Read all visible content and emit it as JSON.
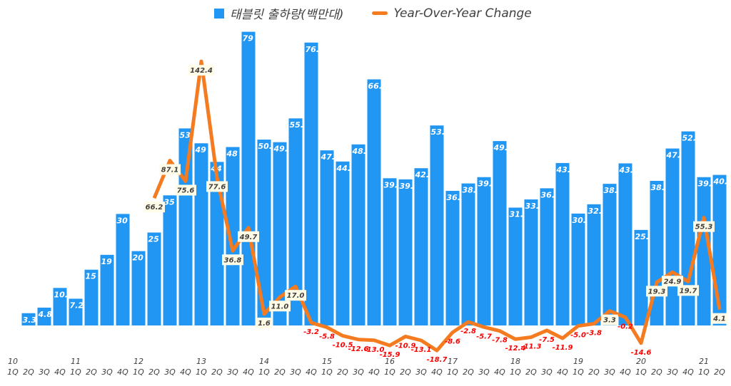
{
  "chart_data": {
    "type": "bar+line",
    "legend_position": "top",
    "grid": false,
    "colors": {
      "bars": "#2196F3",
      "line": "#F47B20",
      "negative_label": "#FF0000",
      "positive_label": "#404040"
    },
    "years": [
      "10",
      "11",
      "12",
      "13",
      "14",
      "15",
      "16",
      "17",
      "18",
      "19",
      "20",
      "21"
    ],
    "categories": [
      "1Q",
      "2Q",
      "3Q",
      "4Q",
      "1Q",
      "2Q",
      "3Q",
      "4Q",
      "1Q",
      "2Q",
      "3Q",
      "4Q",
      "1Q",
      "2Q",
      "3Q",
      "4Q",
      "1Q",
      "2Q",
      "3Q",
      "4Q",
      "1Q",
      "2Q",
      "3Q",
      "4Q",
      "1Q",
      "2Q",
      "3Q",
      "4Q",
      "1Q",
      "2Q",
      "3Q",
      "4Q",
      "1Q",
      "2Q",
      "3Q",
      "4Q",
      "1Q",
      "2Q",
      "3Q",
      "4Q",
      "1Q",
      "2Q",
      "3Q",
      "4Q",
      "1Q",
      "2Q"
    ],
    "series": [
      {
        "name": "태블릿 출하량(백만대)",
        "type": "bar",
        "values": [
          null,
          3.3,
          4.8,
          10.1,
          7.2,
          15,
          19,
          30,
          20,
          25,
          35,
          53,
          49,
          44,
          48,
          79,
          50.0,
          49.3,
          55.7,
          76.1,
          47.1,
          44.1,
          48.7,
          66.2,
          39.6,
          39.3,
          42.3,
          53.8,
          36.2,
          38.2,
          39.9,
          49.6,
          31.7,
          33.9,
          36.9,
          43.7,
          30.1,
          32.6,
          38.1,
          43.6,
          25.7,
          38.9,
          47.6,
          52.2,
          39.9,
          40.5
        ],
        "labels": [
          null,
          "3.3",
          "4.8",
          "10.1",
          "7.2",
          "15",
          "19",
          "30",
          "20",
          "25",
          "35",
          "53",
          "49",
          "44",
          "48",
          "79",
          "50.0",
          "49.3",
          "55.7",
          "76.1",
          "47.1",
          "44.1",
          "48.7",
          "66.2",
          "39.6",
          "39.3",
          "42.3",
          "53.8",
          "36.2",
          "38.2",
          "39.9",
          "49.6",
          "31.7",
          "33.9",
          "36.9",
          "43.7",
          "30.1",
          "32.6",
          "38.1",
          "43.6",
          "25.7",
          "38.9",
          "47.6",
          "52.2",
          "39.9",
          "40.5"
        ]
      },
      {
        "name": "Year-Over-Year Change",
        "type": "line",
        "values": [
          null,
          null,
          null,
          null,
          null,
          null,
          null,
          null,
          null,
          66.2,
          87.1,
          75.6,
          142.4,
          77.6,
          36.8,
          49.7,
          1.6,
          11.0,
          17.0,
          -3.2,
          -5.8,
          -10.5,
          -12.6,
          -13.0,
          -15.9,
          -10.9,
          -13.1,
          -18.7,
          -8.6,
          -2.8,
          -5.7,
          -7.8,
          -12.4,
          -11.3,
          -7.5,
          -11.9,
          -5.0,
          -3.8,
          3.3,
          -0.2,
          -14.6,
          19.3,
          24.9,
          19.7,
          55.3,
          4.1
        ],
        "labels": [
          null,
          null,
          null,
          null,
          null,
          null,
          null,
          null,
          null,
          "66.2",
          "87.1",
          "75.6",
          "142.4",
          "77.6",
          "36.8",
          "49.7",
          "1.6",
          "11.0",
          "17.0",
          "-3.2",
          "-5.8",
          "-10.5",
          "-12.6",
          "-13.0",
          "-15.9",
          "-10.9",
          "-13.1",
          "-18.7",
          "-8.6",
          "-2.8",
          "-5.7",
          "-7.8",
          "-12.4",
          "-11.3",
          "-7.5",
          "-11.9",
          "-5.0",
          "-3.8",
          "3.3",
          "-0.2",
          "-14.6",
          "19.3",
          "24.9",
          "19.7",
          "55.3",
          "4.1"
        ]
      }
    ]
  }
}
